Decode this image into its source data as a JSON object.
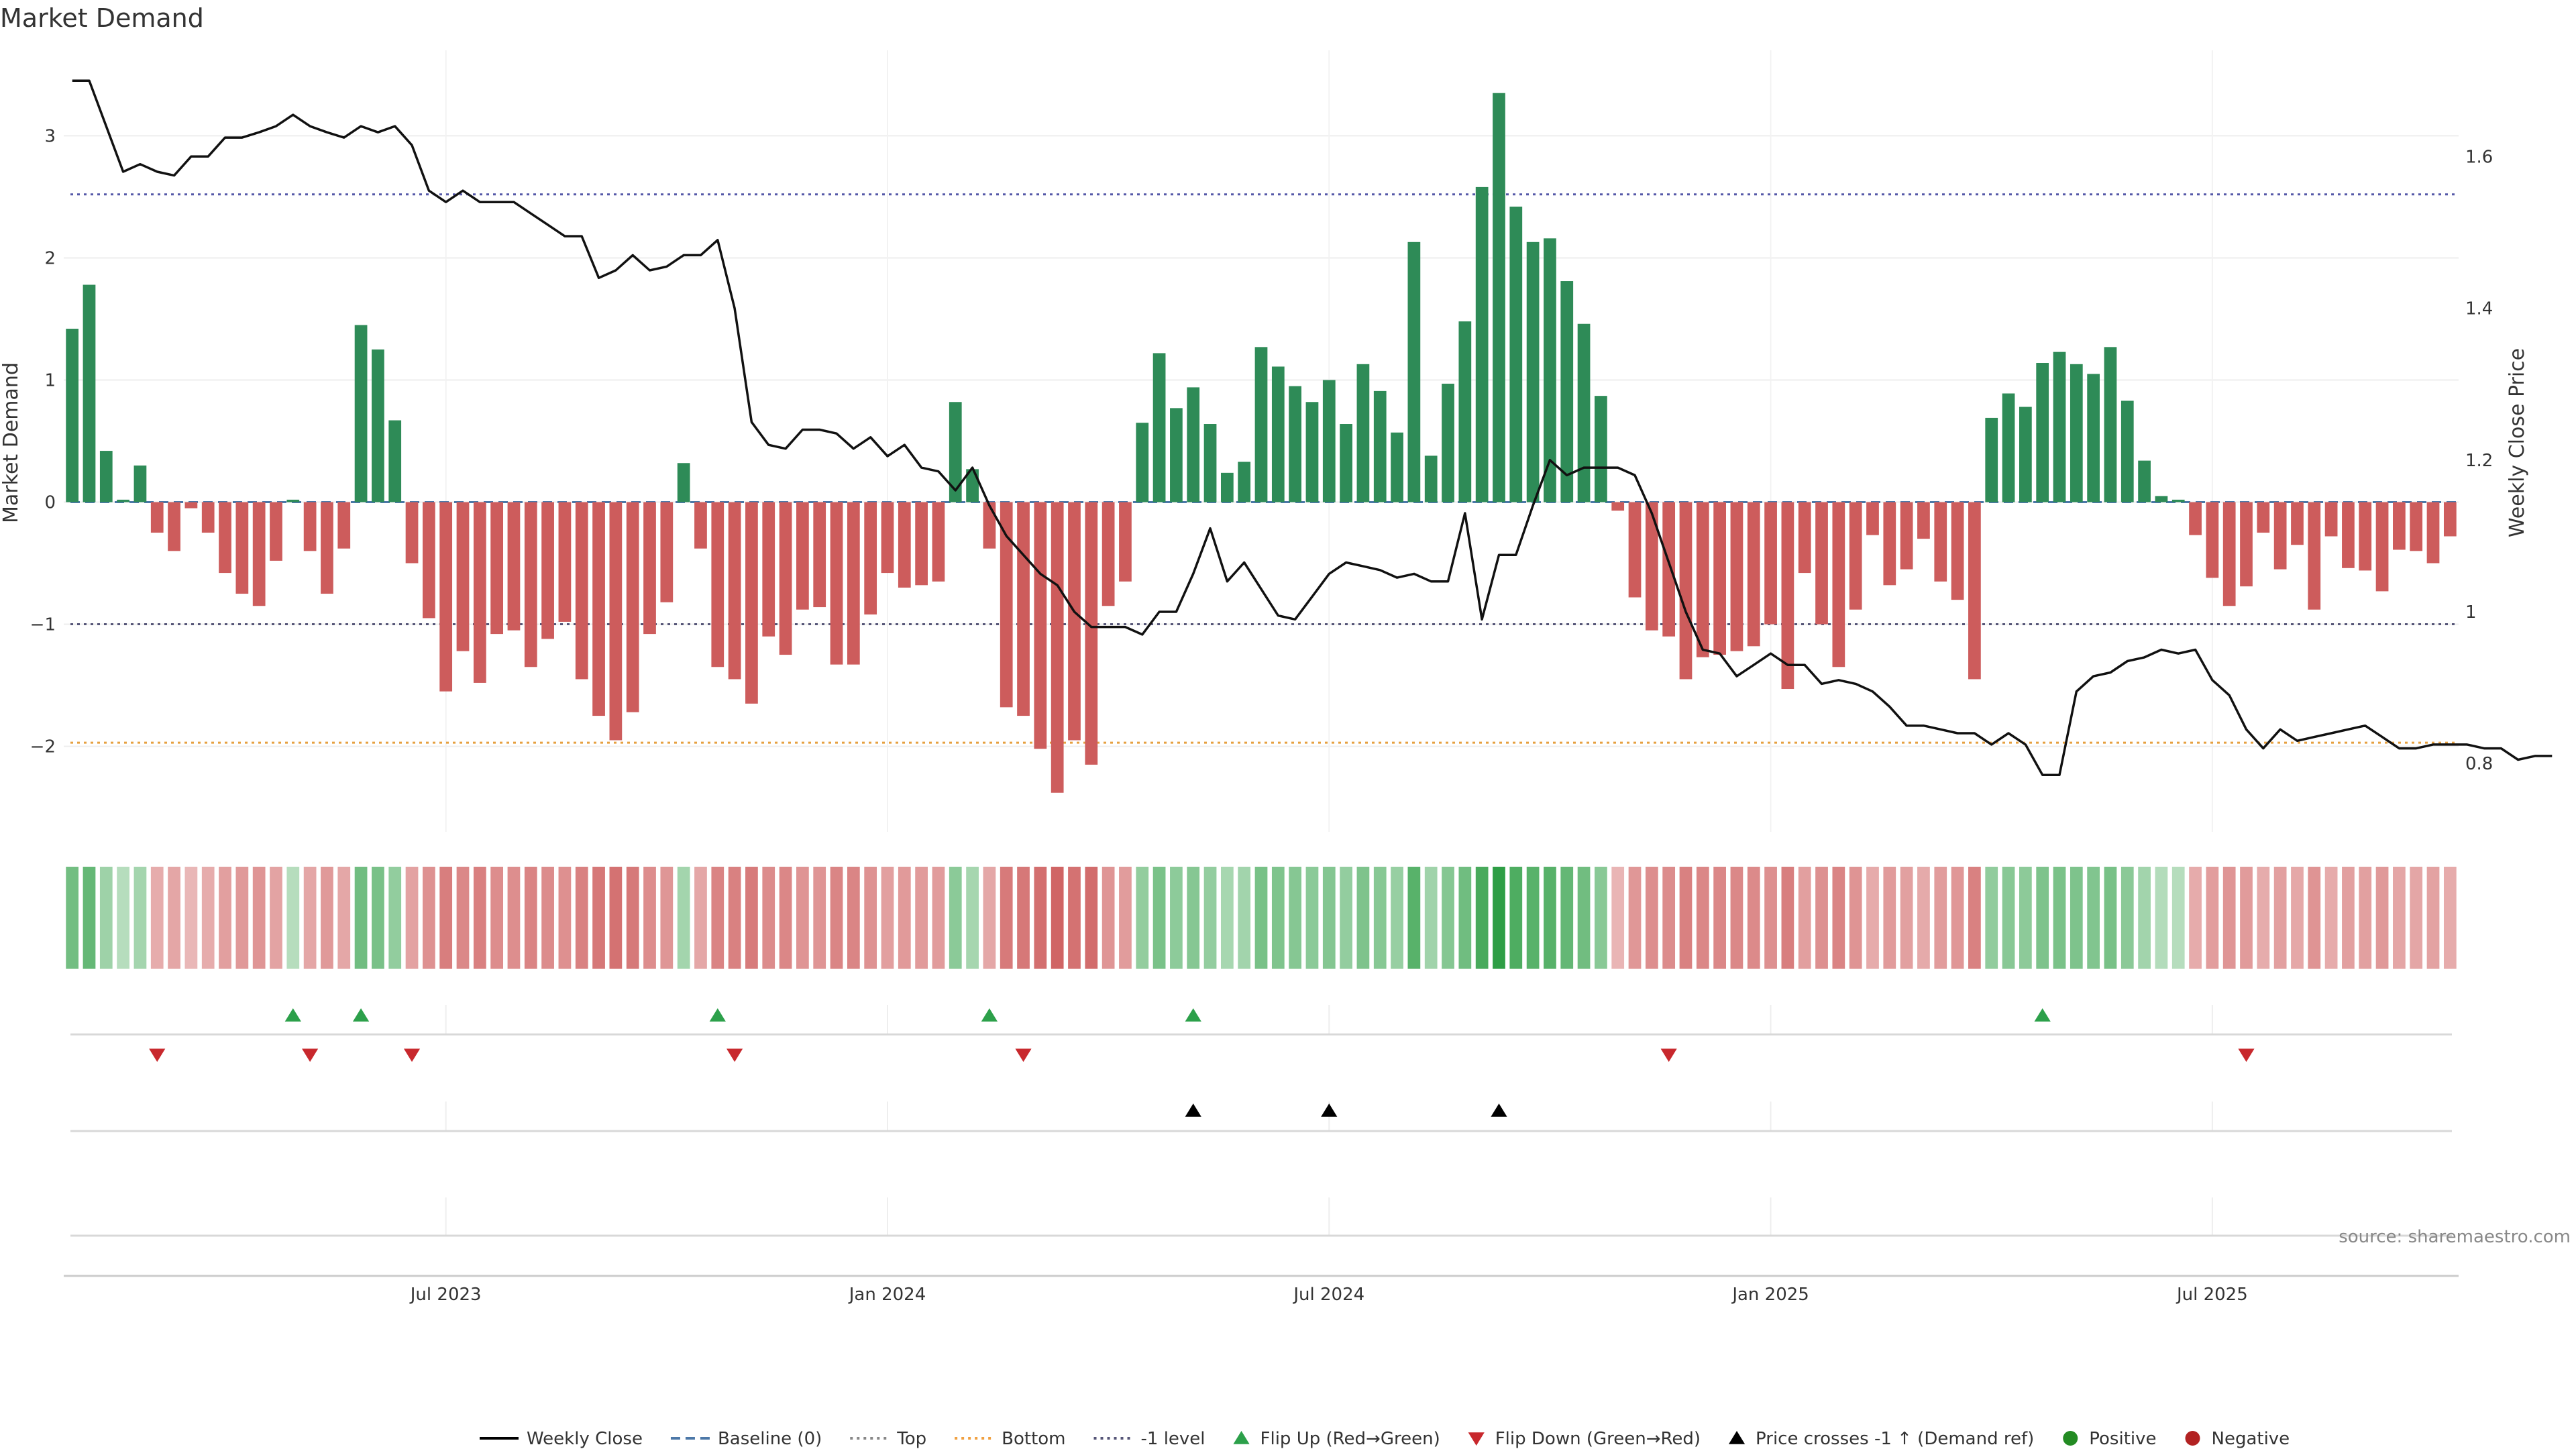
{
  "chart_data": {
    "type": "bar",
    "title": "Market Demand",
    "ylabel": "Market Demand",
    "y2label": "Weekly Close Price",
    "source": "source: sharemaestro.com",
    "ylim": [
      -2.7,
      3.7
    ],
    "y2lim": [
      0.71,
      1.74
    ],
    "yticks": [
      -2,
      -1,
      0,
      1,
      2,
      3
    ],
    "y2ticks": [
      "0.8",
      "1",
      "1.2",
      "1.4",
      "1.6"
    ],
    "xticks": [
      {
        "label": "Jul 2023",
        "index": 22
      },
      {
        "label": "Jan 2024",
        "index": 48
      },
      {
        "label": "Jul 2024",
        "index": 74
      },
      {
        "label": "Jan 2025",
        "index": 100
      },
      {
        "label": "Jul 2025",
        "index": 126
      }
    ],
    "reference_lines": {
      "top": 2.52,
      "bottom": -1.97,
      "minus_one": -1.0,
      "baseline": 0
    },
    "demand": [
      1.42,
      1.78,
      0.42,
      0.02,
      0.3,
      -0.25,
      -0.4,
      -0.05,
      -0.25,
      -0.58,
      -0.75,
      -0.85,
      -0.48,
      0.02,
      -0.4,
      -0.75,
      -0.38,
      1.45,
      1.25,
      0.67,
      -0.5,
      -0.95,
      -1.55,
      -1.22,
      -1.48,
      -1.08,
      -1.05,
      -1.35,
      -1.12,
      -0.98,
      -1.45,
      -1.75,
      -1.95,
      -1.72,
      -1.08,
      -0.82,
      0.32,
      -0.38,
      -1.35,
      -1.45,
      -1.65,
      -1.1,
      -1.25,
      -0.88,
      -0.86,
      -1.33,
      -1.33,
      -0.92,
      -0.58,
      -0.7,
      -0.68,
      -0.65,
      0.82,
      0.27,
      -0.38,
      -1.68,
      -1.75,
      -2.02,
      -2.38,
      -1.95,
      -2.15,
      -0.85,
      -0.65,
      0.65,
      1.22,
      0.77,
      0.94,
      0.64,
      0.24,
      0.33,
      1.27,
      1.11,
      0.95,
      0.82,
      1.0,
      0.64,
      1.13,
      0.91,
      0.57,
      2.13,
      0.38,
      0.97,
      1.48,
      2.58,
      3.35,
      2.42,
      2.13,
      2.16,
      1.81,
      1.46,
      0.87,
      -0.07,
      -0.78,
      -1.05,
      -1.1,
      -1.45,
      -1.27,
      -1.25,
      -1.22,
      -1.18,
      -1.0,
      -1.53,
      -0.58,
      -1.0,
      -1.35,
      -0.88,
      -0.27,
      -0.68,
      -0.55,
      -0.3,
      -0.65,
      -0.8,
      -1.45,
      0.69,
      0.89,
      0.78,
      1.14,
      1.23,
      1.13,
      1.05,
      1.27,
      0.83,
      0.34,
      0.05,
      0.02,
      -0.27,
      -0.62,
      -0.85,
      -0.69,
      -0.25,
      -0.55,
      -0.35,
      -0.88,
      -0.28,
      -0.54,
      -0.56,
      -0.73,
      -0.39,
      -0.4,
      -0.5,
      -0.28
    ],
    "price": [
      1.7,
      1.7,
      1.64,
      1.58,
      1.59,
      1.58,
      1.575,
      1.6,
      1.6,
      1.625,
      1.625,
      1.632,
      1.64,
      1.655,
      1.64,
      1.632,
      1.625,
      1.64,
      1.632,
      1.64,
      1.615,
      1.555,
      1.54,
      1.555,
      1.54,
      1.54,
      1.54,
      1.525,
      1.51,
      1.495,
      1.495,
      1.44,
      1.45,
      1.47,
      1.45,
      1.455,
      1.47,
      1.47,
      1.49,
      1.4,
      1.25,
      1.22,
      1.215,
      1.24,
      1.24,
      1.235,
      1.215,
      1.23,
      1.205,
      1.22,
      1.19,
      1.185,
      1.16,
      1.19,
      1.14,
      1.1,
      1.075,
      1.05,
      1.035,
      1.0,
      0.98,
      0.98,
      0.98,
      0.97,
      1.0,
      1.0,
      1.05,
      1.11,
      1.04,
      1.065,
      1.03,
      0.995,
      0.99,
      1.02,
      1.05,
      1.065,
      1.06,
      1.055,
      1.045,
      1.05,
      1.04,
      1.04,
      1.13,
      0.99,
      1.075,
      1.075,
      1.14,
      1.2,
      1.18,
      1.19,
      1.19,
      1.19,
      1.18,
      1.13,
      1.065,
      1.0,
      0.95,
      0.945,
      0.915,
      0.93,
      0.945,
      0.93,
      0.93,
      0.905,
      0.91,
      0.905,
      0.895,
      0.875,
      0.85,
      0.85,
      0.845,
      0.84,
      0.84,
      0.825,
      0.84,
      0.825,
      0.785,
      0.785,
      0.895,
      0.915,
      0.92,
      0.935,
      0.94,
      0.95,
      0.945,
      0.95,
      0.91,
      0.89,
      0.845,
      0.82,
      0.845,
      0.83,
      0.835,
      0.84,
      0.845,
      0.85,
      0.835,
      0.82,
      0.82,
      0.825,
      0.825,
      0.825,
      0.82,
      0.82,
      0.805,
      0.81,
      0.81
    ],
    "flip_up": [
      13,
      17,
      38,
      54,
      66,
      116
    ],
    "flip_down": [
      5,
      14,
      20,
      39,
      56,
      94,
      128
    ],
    "price_cross": [
      66,
      74,
      84
    ],
    "legend": [
      {
        "label": "Weekly Close",
        "kind": "line",
        "color": "#000000"
      },
      {
        "label": "Baseline (0)",
        "kind": "dashline",
        "color": "#4c78a8"
      },
      {
        "label": "Top",
        "kind": "dotline",
        "color": "#888888"
      },
      {
        "label": "Bottom",
        "kind": "dotline",
        "color": "#f0a040"
      },
      {
        "label": "-1 level",
        "kind": "dotline",
        "color": "#555577"
      },
      {
        "label": "Flip Up (Red→Green)",
        "kind": "tri-up",
        "color": "#2ca04a"
      },
      {
        "label": "Flip Down (Green→Red)",
        "kind": "tri-down",
        "color": "#c8282d"
      },
      {
        "label": "Price crosses -1 ↑ (Demand ref)",
        "kind": "tri-up",
        "color": "#000000"
      },
      {
        "label": "Positive",
        "kind": "dot",
        "color": "#238b23"
      },
      {
        "label": "Negative",
        "kind": "dot",
        "color": "#b22222"
      }
    ],
    "colors": {
      "positive": "#2e8b57",
      "negative": "#cd5c5c",
      "price": "#111111",
      "top": "#5558a8",
      "bottom": "#e6a040",
      "minus_one": "#555577",
      "baseline": "#4c78a8"
    }
  }
}
